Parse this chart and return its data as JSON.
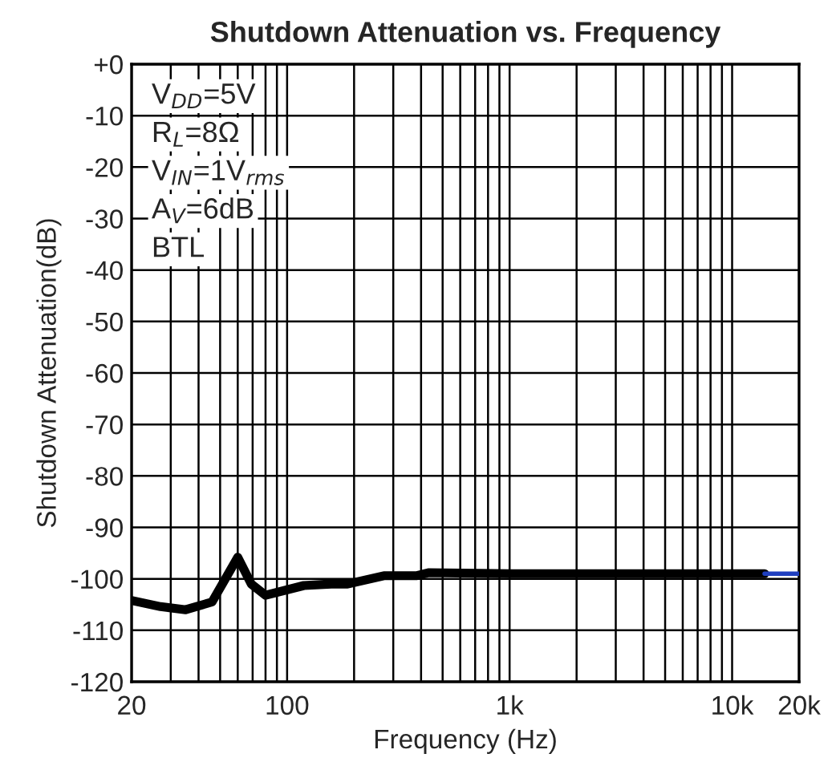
{
  "chart_data": {
    "type": "line",
    "title": "Shutdown Attenuation vs. Frequency",
    "xlabel": "Frequency (Hz)",
    "ylabel": "Shutdown Attenuation(dB)",
    "log": "x",
    "grid": true,
    "line_style": "solid",
    "xlim": [
      20,
      20000
    ],
    "xticks": [
      20,
      100,
      {
        "value": 1000,
        "label": "1k"
      },
      {
        "value": 10000,
        "label": "10k"
      },
      {
        "value": 20000,
        "label": "20k"
      }
    ],
    "ylim": [
      -120,
      0
    ],
    "yticks": [
      {
        "value": 0,
        "label": "+0"
      },
      -10,
      -20,
      -30,
      -40,
      -50,
      -60,
      -70,
      -80,
      -90,
      -100,
      -110,
      -120
    ],
    "annotations": [
      "V$_{DD}$=5V",
      "R$_{L}$=8Ω",
      "V$_{IN}$=1V$_{rms}$",
      "A$_{V}$=6dB",
      "BTL"
    ],
    "series": [
      {
        "color": "#000000",
        "x": [
          20,
          27,
          35,
          46,
          60,
          69,
          80,
          119,
          158,
          187,
          272,
          380,
          435,
          1000,
          5000,
          14000
        ],
        "values": [
          -104.2,
          -105.4,
          -106,
          -104.5,
          -95.8,
          -101,
          -103.2,
          -101.3,
          -101,
          -101,
          -99.4,
          -99.4,
          -98.8,
          -99,
          -99,
          -99
        ]
      },
      {
        "color": "#1f3fbf",
        "x": [
          14000,
          20000
        ],
        "values": [
          -99,
          -99
        ]
      }
    ]
  }
}
